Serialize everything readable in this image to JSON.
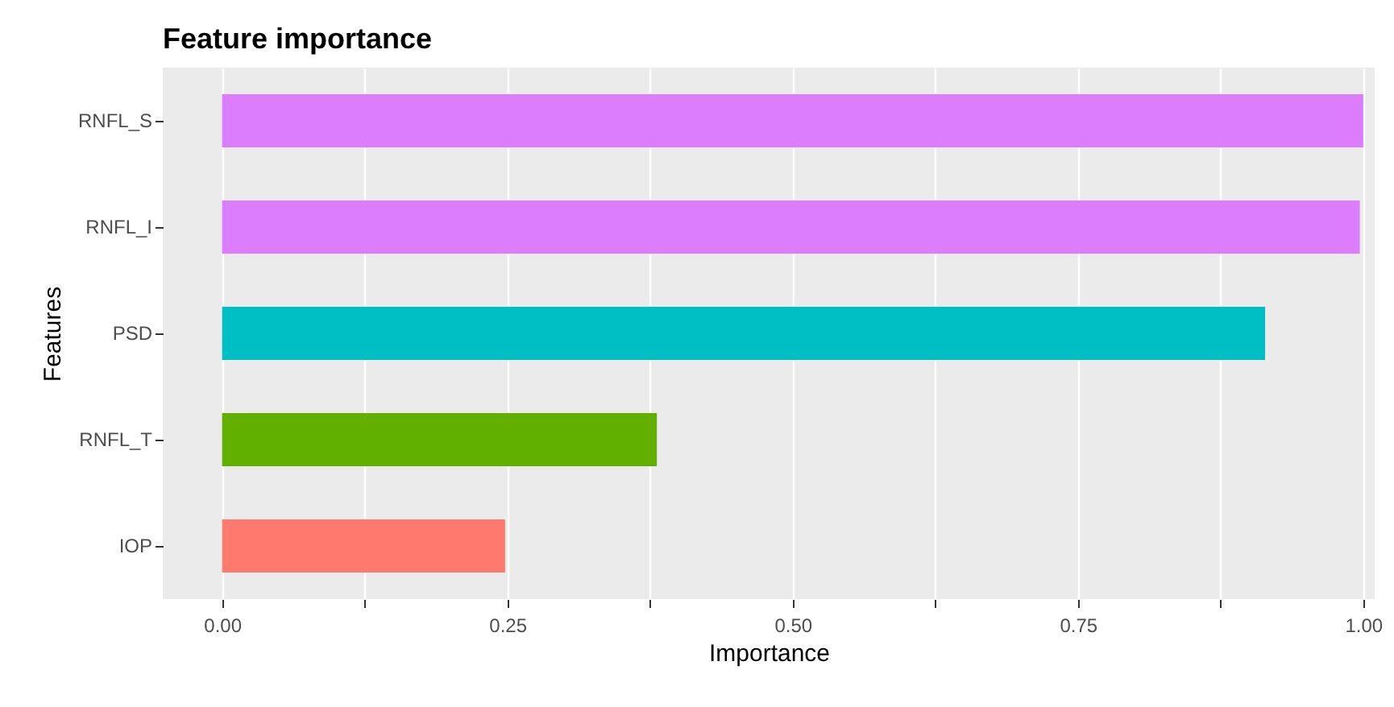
{
  "chart_data": {
    "type": "bar",
    "orientation": "horizontal",
    "title": "Feature importance",
    "xlabel": "Importance",
    "ylabel": "Features",
    "categories": [
      "RNFL_S",
      "RNFL_I",
      "PSD",
      "RNFL_T",
      "IOP"
    ],
    "values": [
      1.0,
      0.997,
      0.914,
      0.381,
      0.248
    ],
    "colors": [
      "#dc7dfd",
      "#dc7dfd",
      "#00bfc4",
      "#61b000",
      "#ff7a6e"
    ],
    "xlim": [
      -0.052,
      1.01
    ],
    "xticks": [
      {
        "value": 0,
        "label": "0.00"
      },
      {
        "value": 0.125,
        "label": null
      },
      {
        "value": 0.25,
        "label": "0.25"
      },
      {
        "value": 0.375,
        "label": null
      },
      {
        "value": 0.5,
        "label": "0.50"
      },
      {
        "value": 0.625,
        "label": null
      },
      {
        "value": 0.75,
        "label": "0.75"
      },
      {
        "value": 0.875,
        "label": null
      },
      {
        "value": 1,
        "label": "1.00"
      }
    ],
    "grid": "x"
  }
}
